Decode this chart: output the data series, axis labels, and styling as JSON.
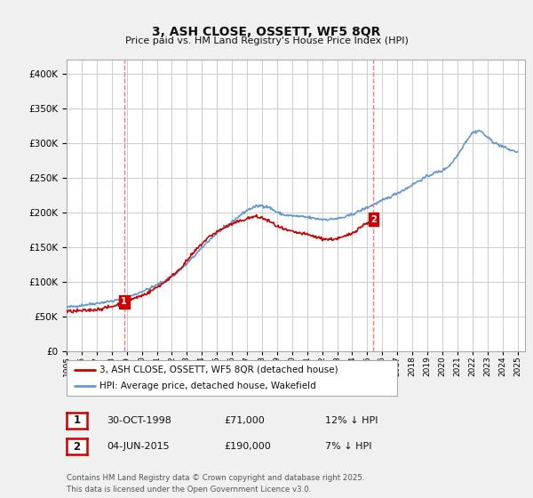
{
  "title": "3, ASH CLOSE, OSSETT, WF5 8QR",
  "subtitle": "Price paid vs. HM Land Registry's House Price Index (HPI)",
  "xlim_start": 1995.0,
  "xlim_end": 2025.5,
  "ylim_min": 0,
  "ylim_max": 420000,
  "yticks": [
    0,
    50000,
    100000,
    150000,
    200000,
    250000,
    300000,
    350000,
    400000
  ],
  "background_color": "#f0f0f0",
  "plot_bg_color": "#ffffff",
  "grid_color": "#cccccc",
  "sale1_date": 1998.83,
  "sale1_price": 71000,
  "sale1_label": "1",
  "sale2_date": 2015.42,
  "sale2_price": 190000,
  "sale2_label": "2",
  "sale_marker_color": "#cc0000",
  "vline_color": "#ff6666",
  "red_line_color": "#cc0000",
  "blue_line_color": "#6699cc",
  "legend_red_label": "3, ASH CLOSE, OSSETT, WF5 8QR (detached house)",
  "legend_blue_label": "HPI: Average price, detached house, Wakefield",
  "table_row1": [
    "1",
    "30-OCT-1998",
    "£71,000",
    "12% ↓ HPI"
  ],
  "table_row2": [
    "2",
    "04-JUN-2015",
    "£190,000",
    "7% ↓ HPI"
  ],
  "footnote": "Contains HM Land Registry data © Crown copyright and database right 2025.\nThis data is licensed under the Open Government Licence v3.0.",
  "xtick_years": [
    1995,
    1996,
    1997,
    1998,
    1999,
    2000,
    2001,
    2002,
    2003,
    2004,
    2005,
    2006,
    2007,
    2008,
    2009,
    2010,
    2011,
    2012,
    2013,
    2014,
    2015,
    2016,
    2017,
    2018,
    2019,
    2020,
    2021,
    2022,
    2023,
    2024,
    2025
  ],
  "hpi_x": [
    1995.0,
    1995.5,
    1996.0,
    1996.5,
    1997.0,
    1997.5,
    1998.0,
    1998.5,
    1999.0,
    1999.5,
    2000.0,
    2000.5,
    2001.0,
    2001.5,
    2002.0,
    2002.5,
    2003.0,
    2003.5,
    2004.0,
    2004.5,
    2005.0,
    2005.5,
    2006.0,
    2006.5,
    2007.0,
    2007.5,
    2008.0,
    2008.5,
    2009.0,
    2009.5,
    2010.0,
    2010.5,
    2011.0,
    2011.5,
    2012.0,
    2012.5,
    2013.0,
    2013.5,
    2014.0,
    2014.5,
    2015.0,
    2015.5,
    2016.0,
    2016.5,
    2017.0,
    2017.5,
    2018.0,
    2018.5,
    2019.0,
    2019.5,
    2020.0,
    2020.5,
    2021.0,
    2021.5,
    2022.0,
    2022.5,
    2023.0,
    2023.5,
    2024.0,
    2024.5,
    2025.0
  ],
  "hpi_y": [
    63000,
    64500,
    66000,
    67500,
    69000,
    70500,
    72000,
    74000,
    77000,
    81000,
    86000,
    90000,
    95000,
    101000,
    108000,
    116000,
    126000,
    137000,
    149000,
    160000,
    170000,
    178000,
    186000,
    195000,
    203000,
    208000,
    210000,
    207000,
    200000,
    196000,
    195000,
    194000,
    193000,
    191000,
    190000,
    190000,
    191000,
    193000,
    197000,
    202000,
    207000,
    212000,
    217000,
    222000,
    228000,
    233000,
    240000,
    246000,
    252000,
    257000,
    260000,
    268000,
    282000,
    300000,
    315000,
    318000,
    308000,
    300000,
    295000,
    290000,
    287000
  ],
  "red_x": [
    1995.0,
    1995.5,
    1996.0,
    1996.5,
    1997.0,
    1997.5,
    1998.0,
    1998.5,
    1998.83,
    1999.0,
    1999.5,
    2000.0,
    2000.5,
    2001.0,
    2001.5,
    2002.0,
    2002.5,
    2003.0,
    2003.5,
    2004.0,
    2004.5,
    2005.0,
    2005.5,
    2006.0,
    2006.5,
    2007.0,
    2007.5,
    2008.0,
    2008.5,
    2009.0,
    2009.5,
    2010.0,
    2010.5,
    2011.0,
    2011.5,
    2012.0,
    2012.5,
    2013.0,
    2013.5,
    2014.0,
    2014.5,
    2015.0,
    2015.42
  ],
  "red_y": [
    57000,
    57500,
    58000,
    59000,
    60000,
    62000,
    64000,
    68000,
    71000,
    73000,
    76000,
    80000,
    85000,
    92000,
    99000,
    108000,
    118000,
    130000,
    143000,
    155000,
    165000,
    172000,
    178000,
    183000,
    187000,
    191000,
    194000,
    192000,
    187000,
    180000,
    175000,
    172000,
    170000,
    168000,
    165000,
    162000,
    161000,
    162000,
    165000,
    170000,
    178000,
    185000,
    190000
  ]
}
